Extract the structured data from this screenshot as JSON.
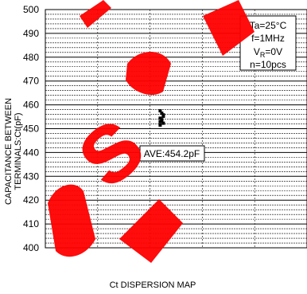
{
  "chart_data": {
    "type": "scatter",
    "xlabel": "Ct DISPERSION MAP",
    "ylabel_line1": "CAPACITANCE BETWEEN",
    "ylabel_line2": "TERMINALS:Ct(pF)",
    "ylim": [
      400,
      500
    ],
    "y_ticks": [
      400,
      410,
      420,
      430,
      440,
      450,
      460,
      470,
      480,
      490,
      500
    ],
    "x_divisions": 5,
    "minor_grid_step": 2,
    "grid": true,
    "points": [
      {
        "x": 0,
        "y": 457.5
      },
      {
        "x": 0,
        "y": 456.5
      },
      {
        "x": 0,
        "y": 455.2
      },
      {
        "x": 0,
        "y": 454.4
      },
      {
        "x": 0,
        "y": 453.4
      },
      {
        "x": 0,
        "y": 452.3
      },
      {
        "x": 0,
        "y": 451.5
      },
      {
        "x": 0,
        "y": 453.8
      },
      {
        "x": 0,
        "y": 455.8
      },
      {
        "x": 0,
        "y": 452.9
      }
    ],
    "conditions": {
      "ta": "Ta=25°C",
      "f": "f=1MHz",
      "vr_main": "V",
      "vr_sub": "R",
      "vr_rest": "=0V",
      "n": "n=10pcs"
    },
    "average_label": "AVE:454.2pF",
    "average_value": 454.2
  },
  "colors": {
    "grid": "#000000",
    "watermark": "#ff0000",
    "points": "#000000"
  }
}
